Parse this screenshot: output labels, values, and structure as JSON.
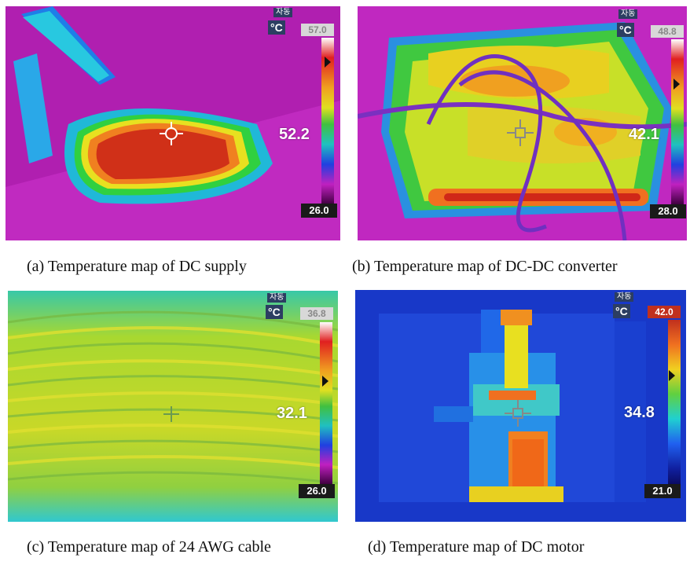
{
  "panels": {
    "a": {
      "mode": "자동",
      "unit": "°C",
      "max": "57.0",
      "min": "26.0",
      "spot": "52.2",
      "caption": "(a) Temperature map of DC supply"
    },
    "b": {
      "mode": "자동",
      "unit": "°C",
      "max": "48.8",
      "min": "28.0",
      "spot": "42.1",
      "caption": "(b) Temperature map of DC-DC converter"
    },
    "c": {
      "mode": "자동",
      "unit": "°C",
      "max": "36.8",
      "min": "26.0",
      "spot": "32.1",
      "caption": "(c) Temperature map of 24 AWG cable"
    },
    "d": {
      "mode": "자동",
      "unit": "°C",
      "max": "42.0",
      "min": "21.0",
      "spot": "34.8",
      "caption": "(d) Temperature map of DC motor"
    }
  },
  "colors": {
    "iron_scale": [
      "#ffffff",
      "#e02020",
      "#f0a020",
      "#e0e020",
      "#40c040",
      "#20c0c0",
      "#2040e0",
      "#c020c0",
      "#400040"
    ],
    "rainbow_scale": [
      "#c0301e",
      "#f07020",
      "#f0d020",
      "#60d040",
      "#20d0d0",
      "#2060f0",
      "#1020a0",
      "#0a0a60"
    ]
  }
}
